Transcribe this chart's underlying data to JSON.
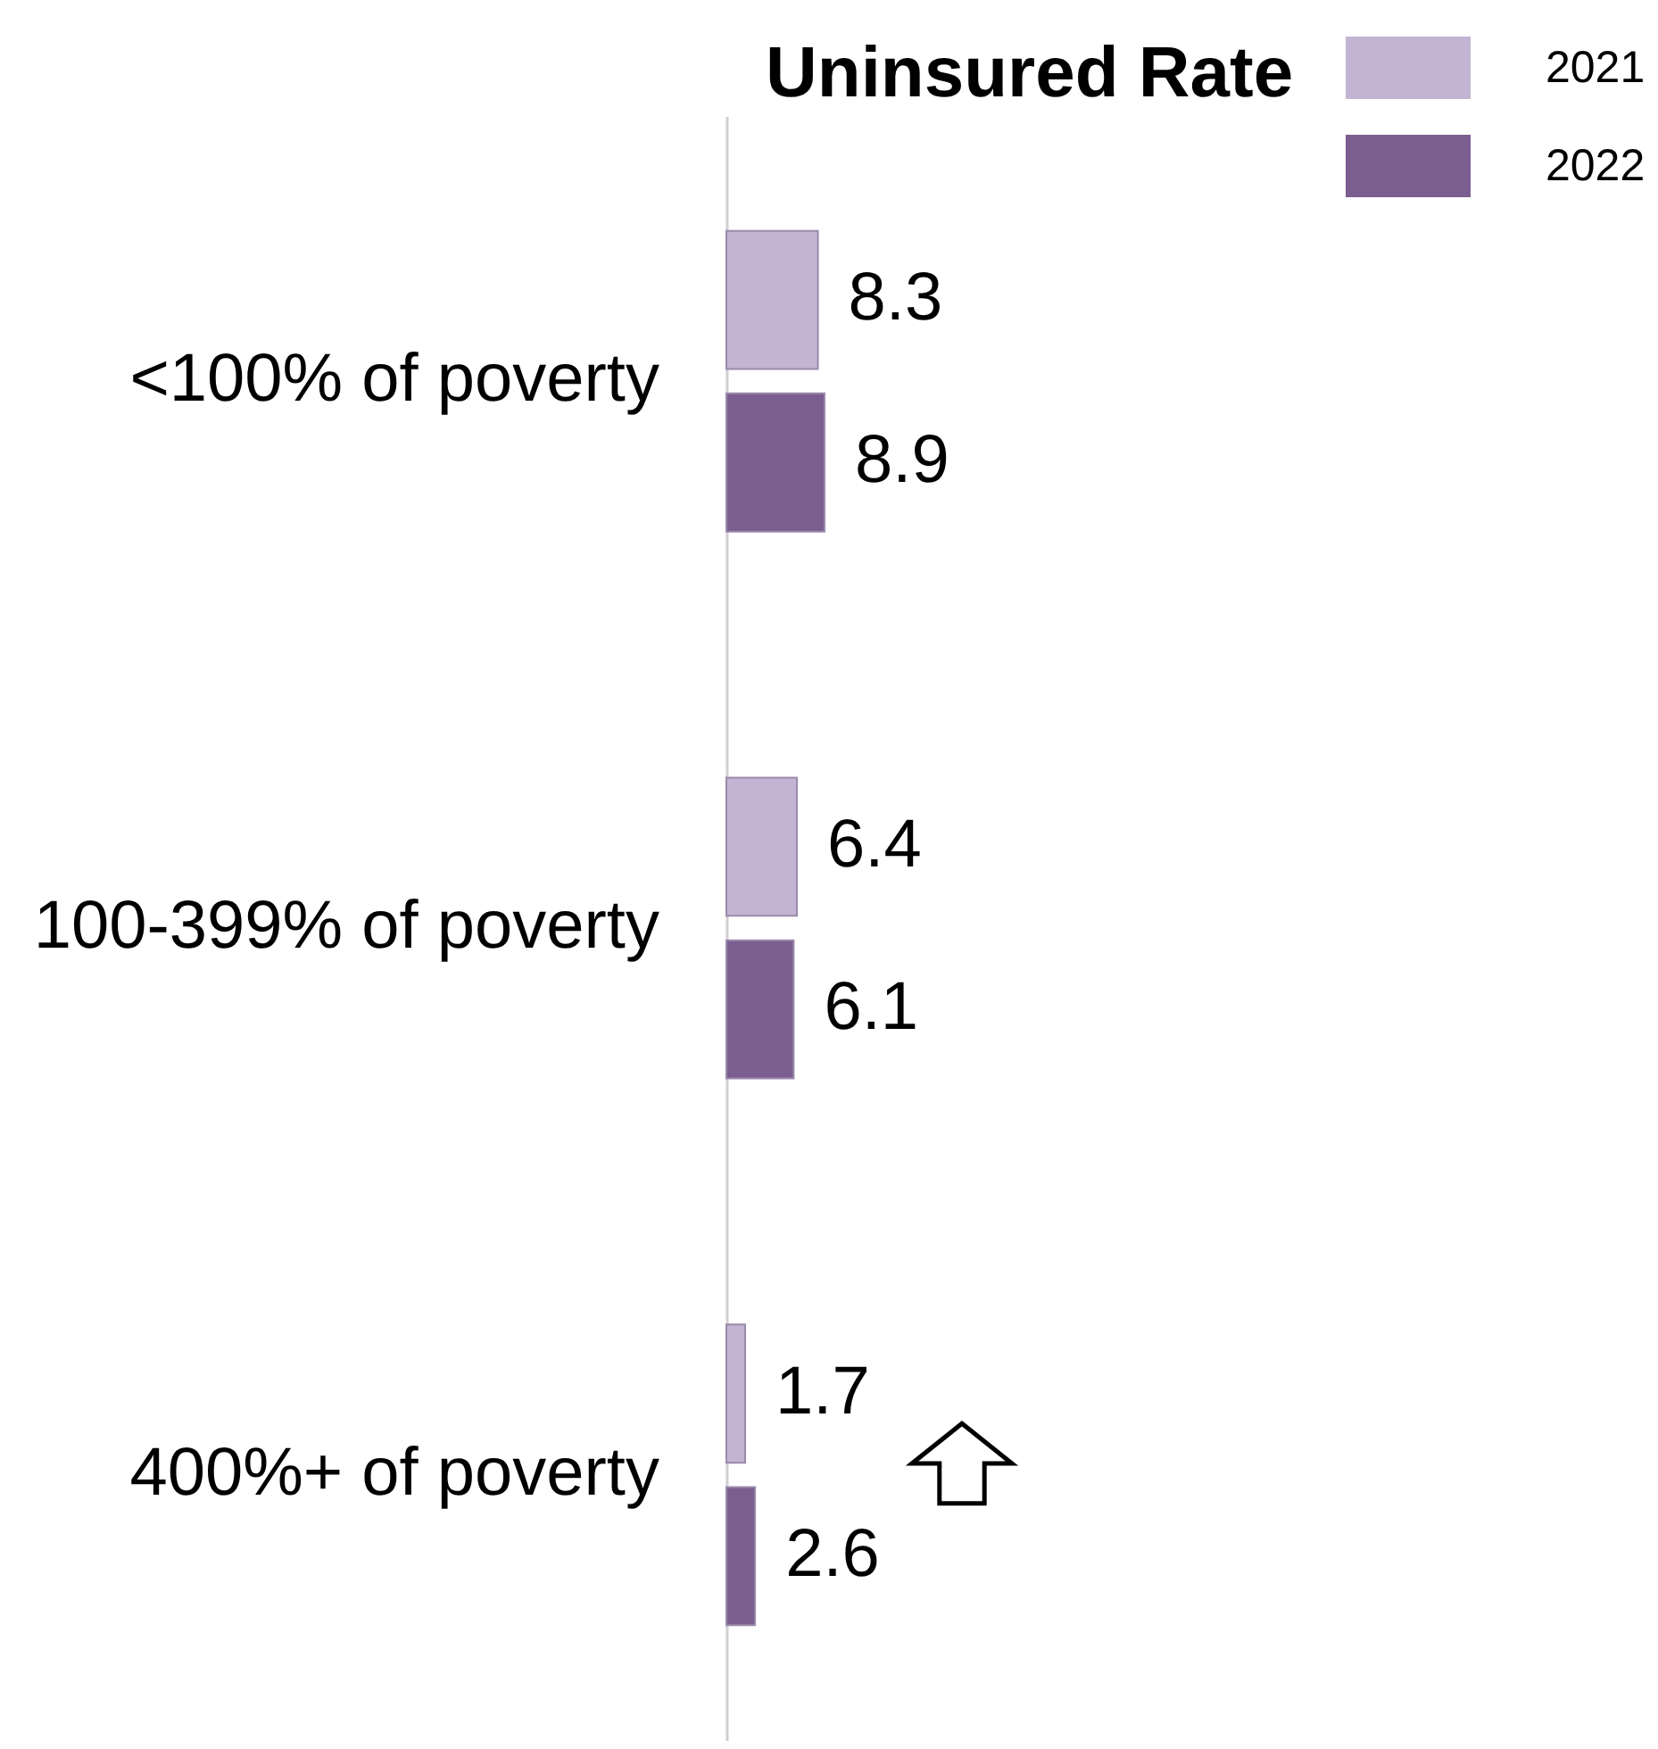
{
  "chart_data": {
    "type": "bar",
    "orientation": "horizontal",
    "title": "Uninsured Rate",
    "categories": [
      "<100% of poverty",
      "100-399% of poverty",
      "400%+ of poverty"
    ],
    "series": [
      {
        "name": "2021",
        "color": "#c3b4d4",
        "values": [
          8.3,
          6.4,
          1.7
        ]
      },
      {
        "name": "2022",
        "color": "#7a5e8f",
        "values": [
          8.9,
          6.1,
          2.6
        ]
      }
    ],
    "data_labels": true,
    "legend": "top right",
    "grid": false,
    "tick_labels": "y"
  }
}
